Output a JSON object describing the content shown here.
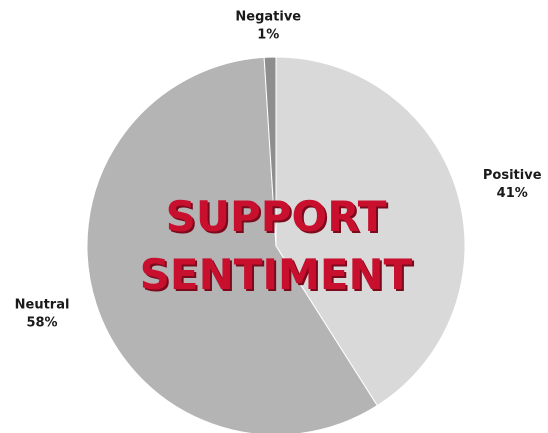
{
  "chart_data": {
    "type": "pie",
    "title": "SUPPORT SENTIMENT",
    "categories": [
      "Positive",
      "Neutral",
      "Negative"
    ],
    "values": [
      41,
      58,
      1
    ],
    "value_labels": [
      "41%",
      "58%",
      "1%"
    ],
    "colors": [
      "#d9d9d9",
      "#b4b4b4",
      "#8e8e8e"
    ]
  }
}
